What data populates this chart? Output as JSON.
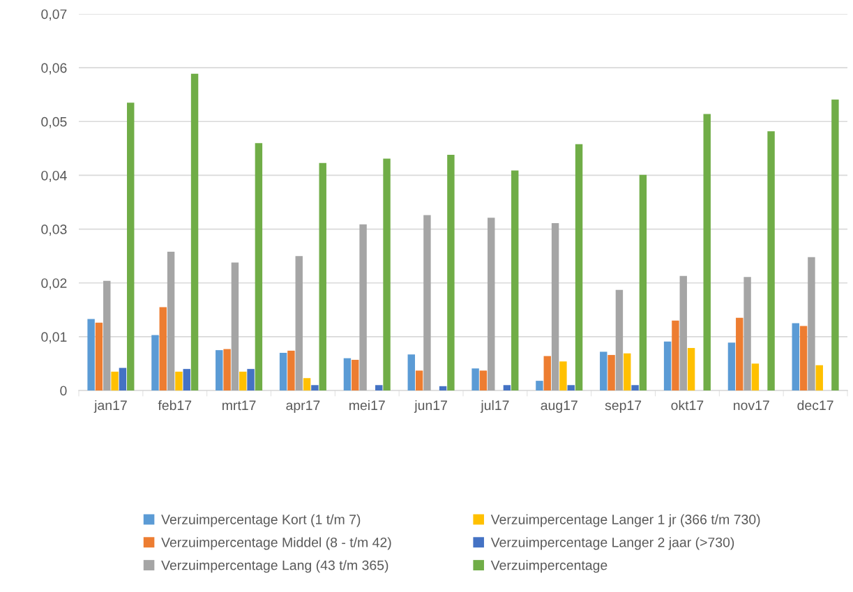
{
  "chart_data": {
    "type": "bar",
    "categories": [
      "jan17",
      "feb17",
      "mrt17",
      "apr17",
      "mei17",
      "jun17",
      "jul17",
      "aug17",
      "sep17",
      "okt17",
      "nov17",
      "dec17"
    ],
    "series": [
      {
        "name": "Verzuimpercentage Kort (1 t/m 7)",
        "color": "#5b9bd5",
        "values": [
          0.0133,
          0.0103,
          0.0075,
          0.007,
          0.006,
          0.0067,
          0.0041,
          0.0018,
          0.0072,
          0.0091,
          0.0089,
          0.0125
        ]
      },
      {
        "name": "Verzuimpercentage Middel (8 - t/m 42)",
        "color": "#ed7d31",
        "values": [
          0.0126,
          0.0155,
          0.0077,
          0.0074,
          0.0057,
          0.0037,
          0.0037,
          0.0064,
          0.0066,
          0.013,
          0.0135,
          0.012
        ]
      },
      {
        "name": "Verzuimpercentage Lang (43 t/m 365)",
        "color": "#a5a5a5",
        "values": [
          0.0204,
          0.0258,
          0.0238,
          0.025,
          0.0309,
          0.0326,
          0.0321,
          0.0311,
          0.0187,
          0.0213,
          0.0211,
          0.0248
        ]
      },
      {
        "name": "Verzuimpercentage Langer 1 jr (366 t/m 730)",
        "color": "#ffc000",
        "values": [
          0.0035,
          0.0035,
          0.0035,
          0.0023,
          0,
          0,
          0,
          0.0054,
          0.0069,
          0.0079,
          0.005,
          0.0047
        ]
      },
      {
        "name": "Verzuimpercentage Langer 2 jaar (>730)",
        "color": "#4472c4",
        "values": [
          0.0042,
          0.004,
          0.004,
          0.001,
          0.001,
          0.0008,
          0.001,
          0.001,
          0.001,
          0,
          0,
          0
        ]
      },
      {
        "name": "Verzuimpercentage",
        "color": "#70ad47",
        "values": [
          0.0535,
          0.0589,
          0.046,
          0.0423,
          0.0431,
          0.0438,
          0.0409,
          0.0458,
          0.0401,
          0.0514,
          0.0482,
          0.0541
        ]
      }
    ],
    "ylim": [
      0,
      0.07
    ],
    "yticks": [
      {
        "value": 0,
        "label": "0"
      },
      {
        "value": 0.01,
        "label": "0,01"
      },
      {
        "value": 0.02,
        "label": "0,02"
      },
      {
        "value": 0.03,
        "label": "0,03"
      },
      {
        "value": 0.04,
        "label": "0,04"
      },
      {
        "value": 0.05,
        "label": "0,05"
      },
      {
        "value": 0.06,
        "label": "0,06"
      },
      {
        "value": 0.07,
        "label": "0,07"
      }
    ],
    "grid": "y",
    "legend": "bottom"
  }
}
